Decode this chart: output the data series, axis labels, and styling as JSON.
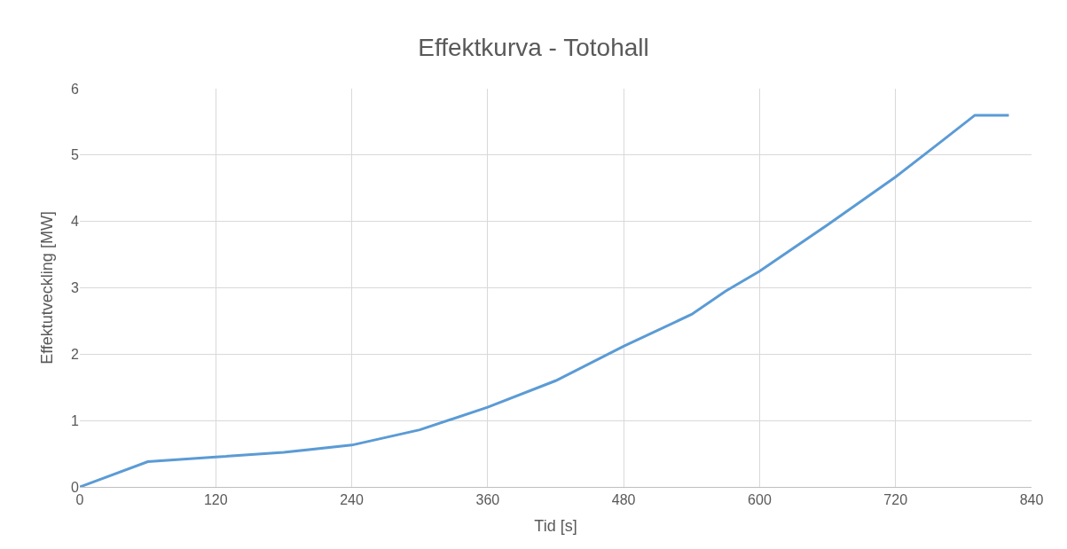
{
  "chart_data": {
    "type": "line",
    "title": "Effektkurva - Totohall",
    "xlabel": "Tid [s]",
    "ylabel": "Effektutveckling [MW]",
    "x": [
      0,
      60,
      120,
      180,
      240,
      300,
      360,
      420,
      480,
      540,
      570,
      600,
      660,
      720,
      760,
      790,
      820
    ],
    "series": [
      {
        "color": "#5b9bd5",
        "values": [
          0,
          0.38,
          0.45,
          0.52,
          0.63,
          0.86,
          1.2,
          1.6,
          2.12,
          2.6,
          2.95,
          3.25,
          3.95,
          4.67,
          5.2,
          5.6,
          5.6
        ]
      }
    ],
    "xlim": [
      0,
      840
    ],
    "xticks": [
      0,
      120,
      240,
      360,
      480,
      600,
      720,
      840
    ],
    "ylim": [
      0,
      6
    ],
    "yticks": [
      0,
      1,
      2,
      3,
      4,
      5,
      6
    ],
    "grid": true,
    "marker": "none",
    "line_style": "solid"
  }
}
